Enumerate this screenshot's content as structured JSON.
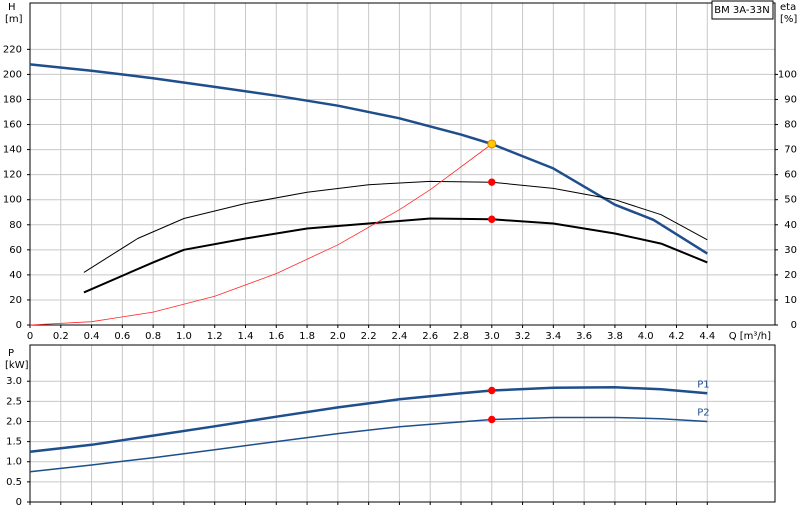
{
  "chart_data": [
    {
      "type": "line",
      "title": "BM 3A-33N",
      "y_label": "H",
      "y_unit": "[m]",
      "y2_label": "eta",
      "y2_unit": "[%]",
      "x_label": "Q [m³/h]",
      "xlim": [
        0,
        4.84
      ],
      "ylim": [
        0,
        257
      ],
      "y2lim": [
        0,
        128.5
      ],
      "grid": true,
      "xticks": [
        0,
        0.2,
        0.4,
        0.6,
        0.8,
        {
          "value": 1.0,
          "label": "1.0"
        },
        1.2,
        1.4,
        1.6,
        1.8,
        {
          "value": 2.0,
          "label": "2.0"
        },
        2.2,
        2.4,
        2.6,
        2.8,
        {
          "value": 3.0,
          "label": "3.0"
        },
        3.2,
        3.4,
        3.6,
        3.8,
        {
          "value": 4.0,
          "label": "4.0"
        },
        4.2,
        4.4
      ],
      "yticks": [
        0,
        20,
        40,
        60,
        80,
        100,
        120,
        140,
        160,
        180,
        200,
        220
      ],
      "y2ticks": [
        0,
        10,
        20,
        30,
        40,
        50,
        60,
        70,
        80,
        90,
        100
      ],
      "series": [
        {
          "color": "#1f4e8c",
          "width": 2.5,
          "axis": "y",
          "x": [
            0,
            0.4,
            0.8,
            1.2,
            1.6,
            2.0,
            2.4,
            2.8,
            3.0,
            3.4,
            3.8,
            4.05,
            4.4
          ],
          "values": [
            208,
            203,
            197,
            190,
            183,
            175,
            165,
            152,
            144.5,
            125,
            96,
            84,
            57
          ]
        },
        {
          "color": "#000000",
          "width": 1,
          "axis": "y2",
          "x": [
            0.35,
            0.7,
            1.0,
            1.4,
            1.8,
            2.2,
            2.6,
            3.0,
            3.4,
            3.8,
            4.1,
            4.4
          ],
          "values": [
            21,
            34.5,
            42.5,
            48.5,
            53,
            56,
            57.3,
            57,
            54.5,
            50,
            44,
            34
          ]
        },
        {
          "color": "#000000",
          "width": 2,
          "axis": "y2",
          "x": [
            0.35,
            0.8,
            1.0,
            1.4,
            1.8,
            2.2,
            2.6,
            3.0,
            3.4,
            3.8,
            4.1,
            4.4
          ],
          "values": [
            13,
            25,
            30,
            34.5,
            38.5,
            40.5,
            42.5,
            42.2,
            40.5,
            36.5,
            32.5,
            25
          ]
        },
        {
          "color": "#ff2a2a",
          "width": 0.8,
          "axis": "y",
          "x": [
            0,
            0.4,
            0.8,
            1.2,
            1.6,
            2.0,
            2.4,
            2.6,
            3.0
          ],
          "values": [
            0,
            2.6,
            10.3,
            23,
            41,
            64,
            92,
            108,
            144.5
          ]
        }
      ],
      "points": [
        {
          "x": 3.0,
          "y": 144.5,
          "axis": "y",
          "color": "#ffcc00"
        },
        {
          "x": 3.0,
          "y": 57,
          "axis": "y2",
          "color": "#ff0000"
        },
        {
          "x": 3.0,
          "y": 42.2,
          "axis": "y2",
          "color": "#ff0000"
        }
      ]
    },
    {
      "type": "line",
      "y_label": "P",
      "y_unit": "[kW]",
      "xlim": [
        0,
        4.84
      ],
      "ylim": [
        0,
        3.9
      ],
      "grid": true,
      "xticks": [
        0,
        0.2,
        0.4,
        0.6,
        0.8,
        1,
        1.2,
        1.4,
        1.6,
        1.8,
        2,
        2.2,
        2.4,
        2.6,
        2.8,
        3,
        3.2,
        3.4,
        3.6,
        3.8,
        4,
        4.2,
        4.4
      ],
      "yticks": [
        0,
        0.5,
        {
          "value": 1.0,
          "label": "1.0"
        },
        1.5,
        {
          "value": 2.0,
          "label": "2.0"
        },
        2.5,
        {
          "value": 3.0,
          "label": "3.0"
        }
      ],
      "series": [
        {
          "name": "P1",
          "color": "#1f4e8c",
          "width": 2.5,
          "axis": "y",
          "x": [
            0,
            0.4,
            0.8,
            1.2,
            1.6,
            2.0,
            2.4,
            2.8,
            3.0,
            3.4,
            3.8,
            4.1,
            4.4
          ],
          "values": [
            1.25,
            1.42,
            1.65,
            1.88,
            2.12,
            2.35,
            2.55,
            2.7,
            2.77,
            2.84,
            2.85,
            2.8,
            2.7
          ]
        },
        {
          "name": "P2",
          "color": "#1f4e8c",
          "width": 1.5,
          "axis": "y",
          "x": [
            0,
            0.4,
            0.8,
            1.2,
            1.6,
            2.0,
            2.4,
            2.8,
            3.0,
            3.4,
            3.8,
            4.1,
            4.4
          ],
          "values": [
            0.75,
            0.92,
            1.1,
            1.3,
            1.5,
            1.7,
            1.87,
            1.99,
            2.05,
            2.1,
            2.1,
            2.07,
            2.0
          ]
        }
      ],
      "points": [
        {
          "x": 3.0,
          "y": 2.77,
          "axis": "y",
          "color": "#ff0000"
        },
        {
          "x": 3.0,
          "y": 2.05,
          "axis": "y",
          "color": "#ff0000"
        }
      ]
    }
  ]
}
